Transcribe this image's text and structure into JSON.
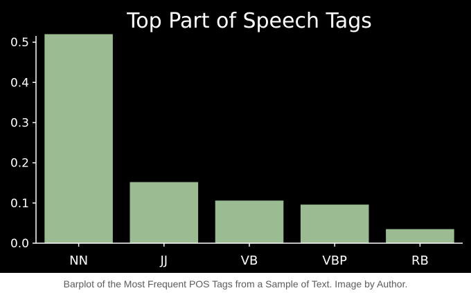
{
  "chart_data": {
    "type": "bar",
    "title": "Top Part of Speech Tags",
    "categories": [
      "NN",
      "JJ",
      "VB",
      "VBP",
      "RB"
    ],
    "values": [
      0.52,
      0.152,
      0.106,
      0.096,
      0.035
    ],
    "ylim": [
      0,
      0.55
    ],
    "yticks": [
      "0.0",
      "0.1",
      "0.2",
      "0.3",
      "0.4",
      "0.5"
    ],
    "grid": false,
    "xlabel": "",
    "ylabel": ""
  },
  "colors": {
    "background": "#000000",
    "bar": "#9bbb93",
    "axis": "#ffffff",
    "text": "#ffffff"
  },
  "caption": "Barplot of the Most Frequent POS Tags from a Sample of Text. Image by Author."
}
